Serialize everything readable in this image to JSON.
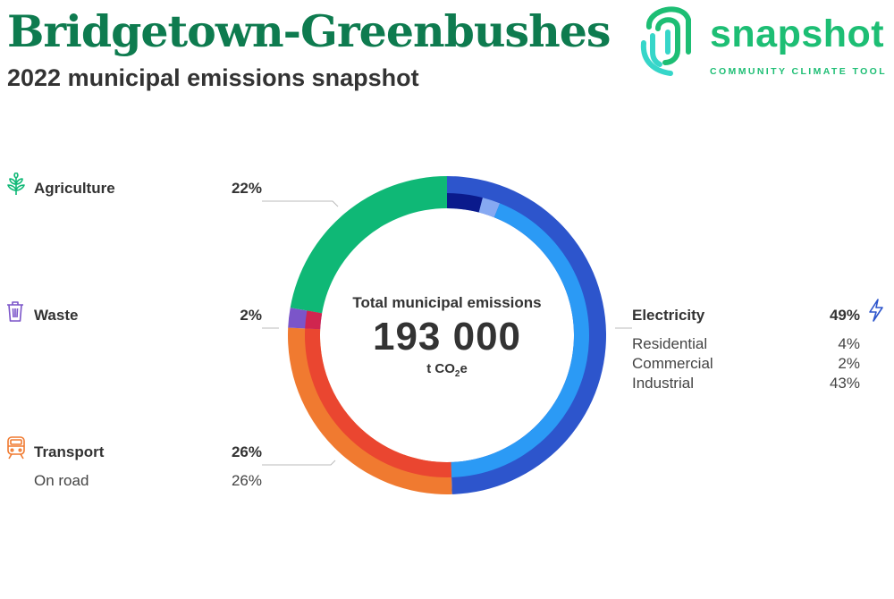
{
  "header": {
    "title": "Bridgetown-Greenbushes",
    "subtitle": "2022 municipal emissions snapshot"
  },
  "logo": {
    "word": "snapshot",
    "tagline": "COMMUNITY CLIMATE TOOL",
    "icon": "fingerprint-icon",
    "colors": [
      "#1dbe74",
      "#36d6c9"
    ]
  },
  "center": {
    "label": "Total municipal emissions",
    "value": "193 000",
    "unit_prefix": "t CO",
    "unit_sub": "2",
    "unit_suffix": "e"
  },
  "sectors": {
    "agriculture": {
      "label": "Agriculture",
      "value": "22%",
      "icon": "wheat-icon",
      "color": "#0fb876"
    },
    "waste": {
      "label": "Waste",
      "value": "2%",
      "icon": "trash-bin-icon",
      "color": "#7b55c9"
    },
    "transport": {
      "label": "Transport",
      "value": "26%",
      "icon": "train-icon",
      "color": "#f07a30",
      "sub": [
        {
          "label": "On road",
          "value": "26%"
        }
      ]
    },
    "electricity": {
      "label": "Electricity",
      "value": "49%",
      "icon": "lightning-icon",
      "color": "#2d55cc",
      "sub": [
        {
          "label": "Residential",
          "value": "4%"
        },
        {
          "label": "Commercial",
          "value": "2%"
        },
        {
          "label": "Industrial",
          "value": "43%"
        }
      ]
    }
  },
  "chart_data": {
    "type": "pie",
    "unit": "%",
    "series": [
      {
        "name": "Electricity",
        "value": 49,
        "color": "#2d55cc"
      },
      {
        "name": "Transport",
        "value": 26,
        "color": "#f07a30"
      },
      {
        "name": "Waste",
        "value": 2,
        "color": "#7b55c9"
      },
      {
        "name": "Agriculture",
        "value": 22,
        "color": "#0fb876"
      }
    ],
    "subcategories": [
      {
        "name": "Residential",
        "parent": "Electricity",
        "value": 4,
        "color": "#0a1a8c"
      },
      {
        "name": "Commercial",
        "parent": "Electricity",
        "value": 2,
        "color": "#86a9f2"
      },
      {
        "name": "Industrial",
        "parent": "Electricity",
        "value": 43,
        "color": "#2b9af5"
      },
      {
        "name": "On road",
        "parent": "Transport",
        "value": 26,
        "color": "#ea4630"
      },
      {
        "name": "",
        "parent": "Waste",
        "value": 2,
        "color": "#d0254f"
      }
    ]
  }
}
